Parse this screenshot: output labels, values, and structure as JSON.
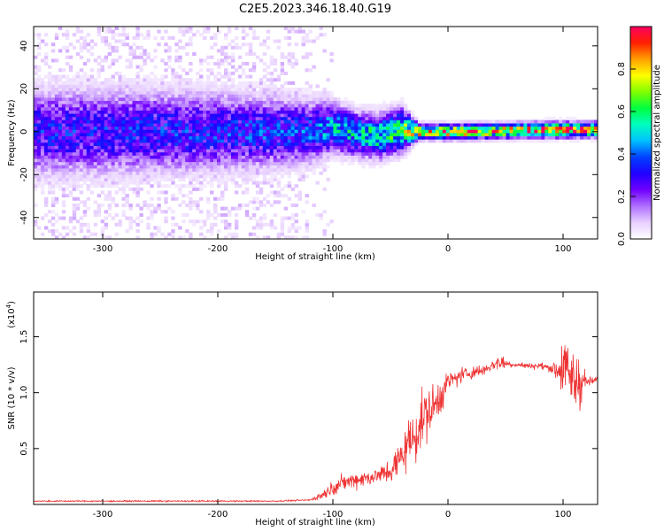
{
  "figure": {
    "title": "C2E5.2023.346.18.40.G19"
  },
  "chart_data": [
    {
      "type": "heatmap",
      "xlabel": "Height of straight line (km)",
      "ylabel": "Frequency (Hz)",
      "xlim": [
        -360,
        130
      ],
      "ylim": [
        -50,
        49
      ],
      "xticks": [
        -300,
        -200,
        -100,
        0,
        100
      ],
      "yticks": [
        -40,
        -20,
        0,
        20,
        40
      ],
      "x_tick_labels": [
        "-300",
        "-200",
        "-100",
        "0",
        "100"
      ],
      "y_tick_labels": [
        "-40",
        "-20",
        "0",
        "20",
        "40"
      ],
      "colorbar": {
        "label": "Normalized spectral amplitude",
        "range": [
          0,
          1
        ],
        "ticks": [
          0.0,
          0.2,
          0.4,
          0.6,
          0.8
        ],
        "tick_labels": [
          "0.0",
          "0.2",
          "0.4",
          "0.6",
          "0.8"
        ],
        "colormap": [
          "#ffffff",
          "#e8d0ff",
          "#b070ff",
          "#7000ff",
          "#2000ff",
          "#0040ff",
          "#00c0ff",
          "#00ffc0",
          "#00ff40",
          "#80ff00",
          "#ffff00",
          "#ffa000",
          "#ff2000",
          "#ff0060"
        ]
      },
      "signal_track": [
        {
          "x": -360,
          "f": 0,
          "spread": 12,
          "amp": 0.3
        },
        {
          "x": -300,
          "f": 0,
          "spread": 12,
          "amp": 0.3
        },
        {
          "x": -200,
          "f": 0,
          "spread": 11,
          "amp": 0.32
        },
        {
          "x": -120,
          "f": 0,
          "spread": 9,
          "amp": 0.35
        },
        {
          "x": -100,
          "f": 2,
          "spread": 7,
          "amp": 0.45
        },
        {
          "x": -80,
          "f": -1,
          "spread": 6,
          "amp": 0.5
        },
        {
          "x": -60,
          "f": -2,
          "spread": 6,
          "amp": 0.55
        },
        {
          "x": -40,
          "f": 1,
          "spread": 6,
          "amp": 0.55
        },
        {
          "x": -25,
          "f": 0,
          "spread": 2,
          "amp": 0.8
        },
        {
          "x": 0,
          "f": 0,
          "spread": 2,
          "amp": 0.85
        },
        {
          "x": 50,
          "f": 0.5,
          "spread": 2,
          "amp": 0.8
        },
        {
          "x": 100,
          "f": 1,
          "spread": 2,
          "amp": 0.9
        },
        {
          "x": 130,
          "f": 1,
          "spread": 2,
          "amp": 0.8
        }
      ]
    },
    {
      "type": "line",
      "xlabel": "Height of straight line (km)",
      "ylabel": "SNR (10 * v/v)",
      "y_scale_note": "(x10",
      "y_scale_exp": "4",
      "y_scale_close": ")",
      "xlim": [
        -360,
        130
      ],
      "ylim": [
        0,
        1.9
      ],
      "xticks": [
        -300,
        -200,
        -100,
        0,
        100
      ],
      "yticks": [
        0.5,
        1.0,
        1.5
      ],
      "x_tick_labels": [
        "-300",
        "-200",
        "-100",
        "0",
        "100"
      ],
      "y_tick_labels": [
        "0.5",
        "1.0",
        "1.5"
      ],
      "color": "#ee3333",
      "series": [
        {
          "x": [
            -360,
            -300,
            -250,
            -200,
            -150,
            -120,
            -110,
            -100,
            -90,
            -80,
            -70,
            -60,
            -50,
            -45,
            -40,
            -35,
            -30,
            -25,
            -20,
            -15,
            -10,
            -5,
            0,
            5,
            10,
            20,
            30,
            40,
            45,
            50,
            60,
            70,
            80,
            90,
            95,
            100,
            105,
            110,
            115,
            120,
            125,
            130
          ],
          "y": [
            0.03,
            0.03,
            0.03,
            0.03,
            0.03,
            0.04,
            0.08,
            0.15,
            0.2,
            0.22,
            0.24,
            0.26,
            0.3,
            0.35,
            0.45,
            0.55,
            0.6,
            0.7,
            0.8,
            0.85,
            0.9,
            1.0,
            1.1,
            1.12,
            1.15,
            1.18,
            1.2,
            1.25,
            1.28,
            1.26,
            1.25,
            1.24,
            1.24,
            1.22,
            1.2,
            1.25,
            1.15,
            1.1,
            1.12,
            1.1,
            1.1,
            1.12
          ],
          "noise": [
            0.01,
            0.01,
            0.01,
            0.01,
            0.01,
            0.01,
            0.06,
            0.1,
            0.12,
            0.12,
            0.12,
            0.12,
            0.2,
            0.25,
            0.3,
            0.35,
            0.4,
            0.4,
            0.4,
            0.35,
            0.3,
            0.25,
            0.15,
            0.12,
            0.12,
            0.1,
            0.08,
            0.08,
            0.15,
            0.06,
            0.04,
            0.04,
            0.05,
            0.06,
            0.2,
            0.5,
            0.35,
            0.6,
            0.4,
            0.1,
            0.05,
            0.05
          ]
        }
      ]
    }
  ]
}
